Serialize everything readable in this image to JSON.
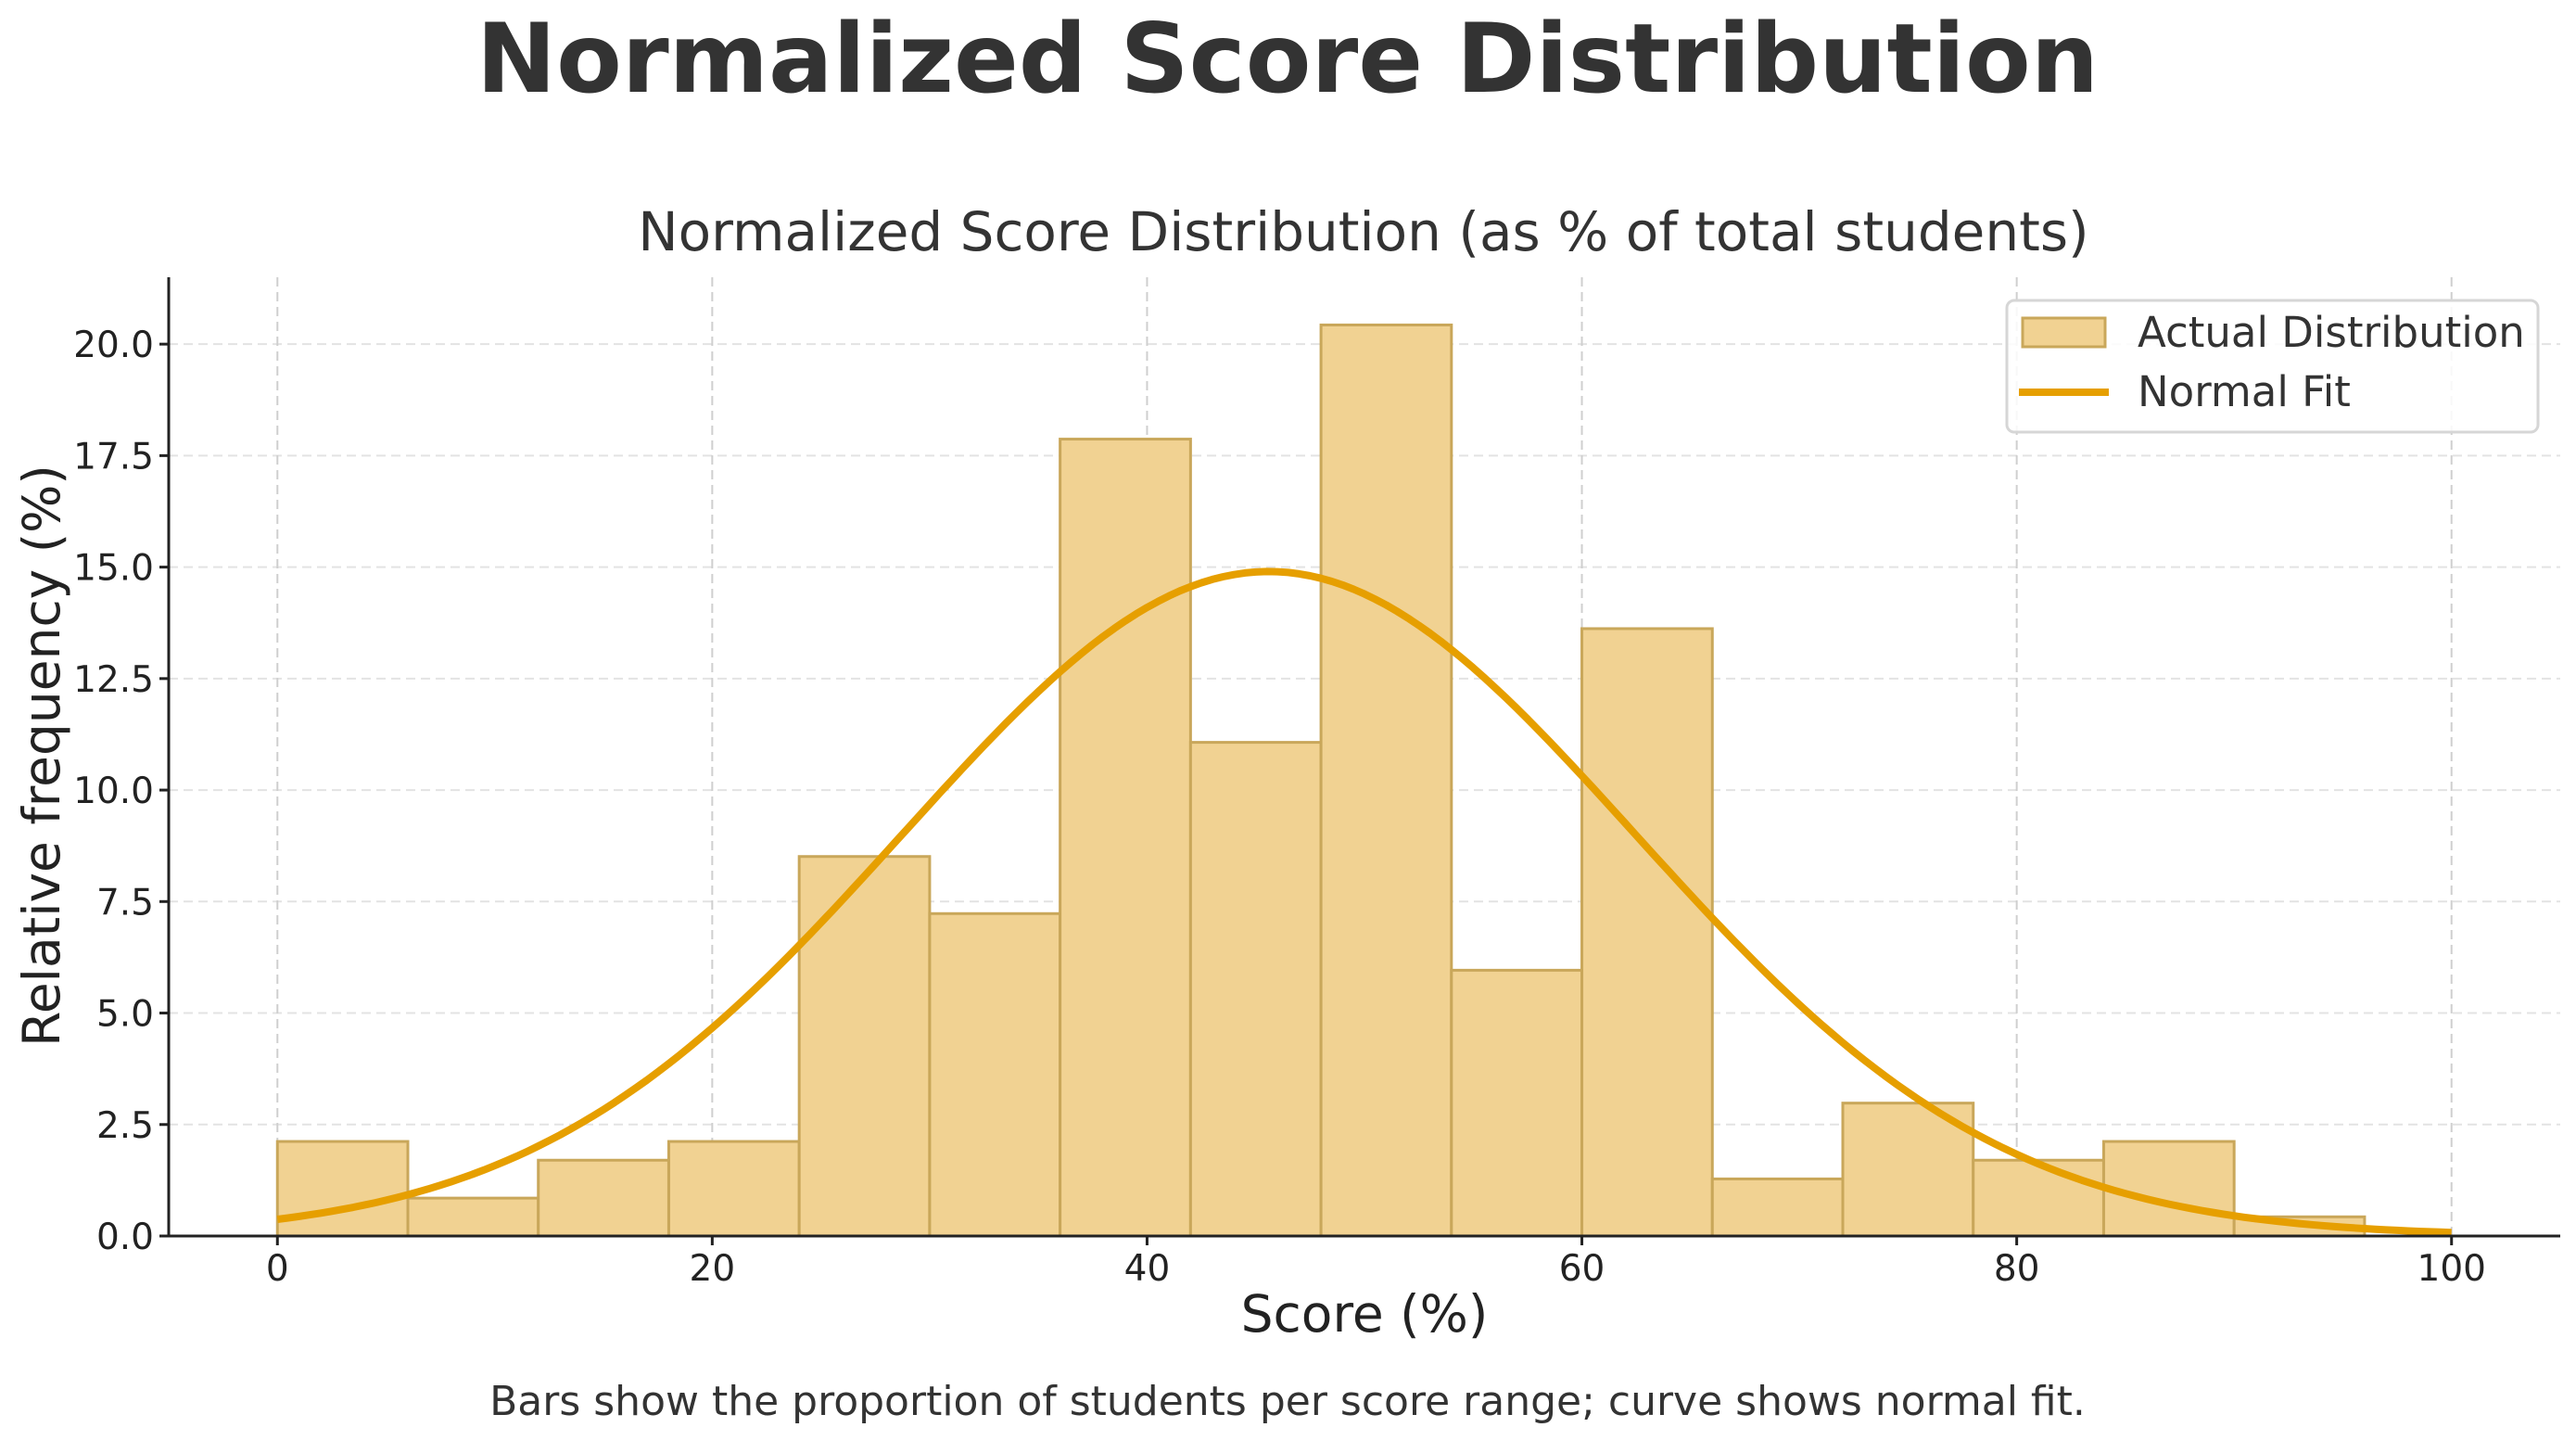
{
  "figure": {
    "suptitle": "Normalized Score Distribution",
    "caption": "Bars show the proportion of students per score range; curve shows normal fit."
  },
  "colors": {
    "bar_fill": "#F1D292",
    "bar_edge": "#C9A75A",
    "curve": "#E69F00",
    "text": "#333333",
    "grid": "#E3E3E3"
  },
  "chart_data": {
    "type": "bar",
    "title": "Normalized Score Distribution (as % of total students)",
    "xlabel": "Score (%)",
    "ylabel": "Relative frequency (%)",
    "xlim": [
      -5,
      105
    ],
    "ylim": [
      0,
      21.5
    ],
    "xticks": [
      0,
      20,
      40,
      60,
      80,
      100
    ],
    "xtick_labels": [
      "0",
      "20",
      "40",
      "60",
      "80",
      "100"
    ],
    "yticks": [
      0,
      2.5,
      5,
      7.5,
      10,
      12.5,
      15,
      17.5,
      20
    ],
    "ytick_labels": [
      "0.0",
      "2.5",
      "5.0",
      "7.5",
      "10.0",
      "12.5",
      "15.0",
      "17.5",
      "20.0"
    ],
    "grid": true,
    "legend_position": "upper right",
    "bin_width": 6,
    "bin_edges": [
      0,
      6,
      12,
      18,
      24,
      30,
      36,
      42,
      48,
      54,
      60,
      66,
      72,
      78,
      84,
      90,
      96
    ],
    "series": [
      {
        "name": "Actual Distribution",
        "type": "bar",
        "values": [
          2.12,
          0.85,
          1.7,
          2.12,
          8.51,
          7.23,
          17.87,
          11.07,
          20.43,
          5.96,
          13.62,
          1.28,
          2.98,
          1.7,
          2.12,
          0.43
        ]
      },
      {
        "name": "Normal Fit",
        "type": "line",
        "mean": 45.6,
        "std": 16.8,
        "peak": 14.9,
        "x_range": [
          0,
          100
        ]
      }
    ],
    "legend": [
      "Actual Distribution",
      "Normal Fit"
    ]
  }
}
